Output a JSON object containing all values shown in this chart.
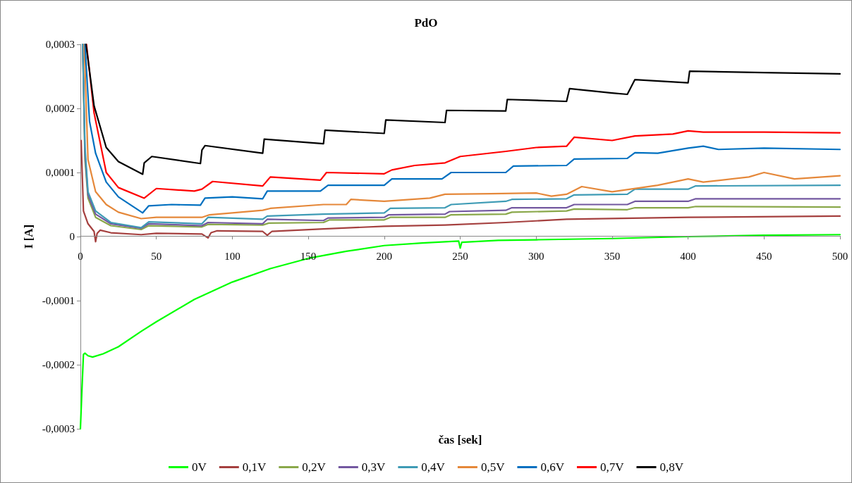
{
  "chart_data": {
    "type": "line",
    "title": "PdO",
    "xlabel": "čas [sek]",
    "ylabel": "I [A]",
    "xlim": [
      0,
      500
    ],
    "xticks": [
      0,
      50,
      100,
      150,
      200,
      250,
      300,
      350,
      400,
      450,
      500
    ],
    "ylim": [
      -0.0003,
      0.0003
    ],
    "yticks": [
      {
        "value": -0.0003,
        "label": "-0,0003"
      },
      {
        "value": -0.0002,
        "label": "-0,0002"
      },
      {
        "value": -0.0001,
        "label": "-0,0001"
      },
      {
        "value": 0,
        "label": "0"
      },
      {
        "value": 0.0001,
        "label": "0,0001"
      },
      {
        "value": 0.0002,
        "label": "0,0002"
      },
      {
        "value": 0.0003,
        "label": "0,0003"
      }
    ],
    "grid": false,
    "legend": "bottom",
    "marker": "none",
    "line_style": "solid",
    "series": [
      {
        "name": "0V",
        "color": "#00ff00",
        "x": [
          0,
          1,
          2,
          3,
          5,
          8,
          15,
          25,
          40,
          50,
          75,
          100,
          125,
          150,
          175,
          200,
          225,
          249,
          250,
          251,
          275,
          300,
          350,
          400,
          450,
          500
        ],
        "values": [
          -0.0003,
          -0.00024,
          -0.000184,
          -0.000182,
          -0.000186,
          -0.000188,
          -0.000183,
          -0.000172,
          -0.000148,
          -0.000133,
          -9.8e-05,
          -7.1e-05,
          -5e-05,
          -3.4e-05,
          -2.3e-05,
          -1.4e-05,
          -1e-05,
          -7e-06,
          -1.8e-05,
          -9e-06,
          -6e-06,
          -5e-06,
          -3e-06,
          0,
          2e-06,
          3e-06
        ]
      },
      {
        "name": "0,1V",
        "color": "#a5403f",
        "x": [
          0.5,
          2,
          5,
          9,
          10,
          11,
          13,
          20,
          40,
          50,
          80,
          84,
          86,
          90,
          120,
          123,
          126,
          160,
          200,
          240,
          280,
          320,
          400,
          500
        ],
        "values": [
          0.00015,
          4e-05,
          2e-05,
          8e-06,
          -8e-06,
          5e-06,
          1e-05,
          6e-06,
          3e-06,
          5e-06,
          4e-06,
          -2e-06,
          6e-06,
          9e-06,
          8e-06,
          2e-06,
          8e-06,
          1.2e-05,
          1.6e-05,
          1.8e-05,
          2.2e-05,
          2.7e-05,
          3e-05,
          3.2e-05
        ]
      },
      {
        "name": "0,2V",
        "color": "#8aa84a",
        "x": [
          1.5,
          3,
          5,
          10,
          20,
          40,
          45,
          80,
          84,
          120,
          124,
          160,
          164,
          200,
          204,
          240,
          244,
          280,
          284,
          320,
          325,
          360,
          365,
          400,
          405,
          500
        ],
        "values": [
          0.0003,
          0.00012,
          6e-05,
          3e-05,
          1.7e-05,
          1.1e-05,
          1.7e-05,
          1.5e-05,
          1.9e-05,
          1.8e-05,
          2.1e-05,
          2.2e-05,
          2.6e-05,
          2.6e-05,
          3e-05,
          3e-05,
          3.4e-05,
          3.5e-05,
          3.8e-05,
          4e-05,
          4.3e-05,
          4.2e-05,
          4.5e-05,
          4.5e-05,
          4.7e-05,
          4.6e-05
        ]
      },
      {
        "name": "0,3V",
        "color": "#7358a0",
        "x": [
          1.5,
          3,
          5,
          10,
          20,
          40,
          45,
          80,
          84,
          120,
          123,
          160,
          163,
          200,
          203,
          240,
          243,
          280,
          284,
          320,
          325,
          360,
          365,
          400,
          405,
          500
        ],
        "values": [
          0.0003,
          0.00013,
          6.5e-05,
          3.5e-05,
          2e-05,
          1.3e-05,
          2e-05,
          1.7e-05,
          2.2e-05,
          2e-05,
          2.7e-05,
          2.5e-05,
          2.9e-05,
          3e-05,
          3.4e-05,
          3.5e-05,
          3.9e-05,
          4.1e-05,
          4.5e-05,
          4.5e-05,
          5e-05,
          5e-05,
          5.5e-05,
          5.5e-05,
          5.9e-05,
          5.9e-05
        ]
      },
      {
        "name": "0,4V",
        "color": "#3e9bb5",
        "x": [
          1.5,
          3,
          5,
          10,
          20,
          40,
          45,
          80,
          84,
          120,
          123,
          160,
          200,
          204,
          240,
          244,
          280,
          284,
          320,
          325,
          360,
          365,
          400,
          405,
          500
        ],
        "values": [
          0.0003,
          0.00014,
          7e-05,
          4e-05,
          2.2e-05,
          1.4e-05,
          2.3e-05,
          2e-05,
          3e-05,
          2.7e-05,
          3.2e-05,
          3.5e-05,
          3.7e-05,
          4.4e-05,
          4.5e-05,
          5e-05,
          5.5e-05,
          5.8e-05,
          5.9e-05,
          6.5e-05,
          6.6e-05,
          7.4e-05,
          7.4e-05,
          7.9e-05,
          8e-05
        ]
      },
      {
        "name": "0,5V",
        "color": "#e5883a",
        "x": [
          2.5,
          5,
          10,
          17,
          25,
          40,
          50,
          80,
          85,
          100,
          120,
          125,
          160,
          175,
          178,
          200,
          230,
          240,
          270,
          300,
          310,
          320,
          330,
          350,
          380,
          400,
          410,
          440,
          450,
          470,
          500
        ],
        "values": [
          0.0003,
          0.00012,
          7e-05,
          5e-05,
          3.8e-05,
          2.8e-05,
          3e-05,
          3e-05,
          3.4e-05,
          3.7e-05,
          4.1e-05,
          4.4e-05,
          5e-05,
          5e-05,
          5.8e-05,
          5.5e-05,
          6e-05,
          6.6e-05,
          6.7e-05,
          6.8e-05,
          6.3e-05,
          6.6e-05,
          7.8e-05,
          7e-05,
          8e-05,
          9e-05,
          8.5e-05,
          9.3e-05,
          0.0001,
          9e-05,
          9.5e-05
        ]
      },
      {
        "name": "0,6V",
        "color": "#0070c0",
        "x": [
          3,
          6,
          10,
          17,
          25,
          41,
          45,
          60,
          79,
          82,
          100,
          120,
          123,
          158,
          163,
          200,
          205,
          238,
          244,
          280,
          285,
          320,
          325,
          360,
          365,
          380,
          400,
          410,
          420,
          450,
          500
        ],
        "values": [
          0.0003,
          0.00018,
          0.00013,
          8.5e-05,
          6.2e-05,
          3.7e-05,
          4.8e-05,
          5e-05,
          4.9e-05,
          6e-05,
          6.2e-05,
          5.9e-05,
          7.1e-05,
          7.1e-05,
          8e-05,
          8e-05,
          9e-05,
          9e-05,
          0.0001,
          0.0001,
          0.00011,
          0.000111,
          0.000121,
          0.000122,
          0.000131,
          0.00013,
          0.000138,
          0.000141,
          0.000136,
          0.000138,
          0.000136
        ]
      },
      {
        "name": "0,7V",
        "color": "#ff0000",
        "x": [
          4,
          9,
          17,
          25,
          42,
          50,
          75,
          80,
          87,
          120,
          125,
          158,
          162,
          200,
          205,
          220,
          240,
          250,
          280,
          300,
          320,
          325,
          350,
          365,
          390,
          400,
          410,
          450,
          500
        ],
        "values": [
          0.0003,
          0.000193,
          0.0001,
          7.65e-05,
          6e-05,
          7.5e-05,
          7.1e-05,
          7.4e-05,
          8.6e-05,
          7.9e-05,
          9.3e-05,
          8.8e-05,
          0.0001,
          9.8e-05,
          0.000104,
          0.000111,
          0.000115,
          0.000125,
          0.000133,
          0.000139,
          0.000141,
          0.000155,
          0.00015,
          0.000157,
          0.00016,
          0.000165,
          0.000163,
          0.000163,
          0.000162
        ]
      },
      {
        "name": "0,8V",
        "color": "#000000",
        "x": [
          3.7,
          9,
          17,
          25,
          41,
          42,
          47,
          79,
          80,
          82,
          120,
          121,
          160,
          161,
          200,
          201,
          240,
          241,
          280,
          281,
          320,
          322,
          350,
          360,
          365,
          400,
          401,
          450,
          500
        ],
        "values": [
          0.0003,
          0.000204,
          0.000139,
          0.000117,
          9.73e-05,
          0.000115,
          0.000125,
          0.000114,
          0.000135,
          0.000142,
          0.00013,
          0.000152,
          0.000145,
          0.000166,
          0.000161,
          0.000182,
          0.000178,
          0.000197,
          0.000196,
          0.000214,
          0.000211,
          0.000231,
          0.000224,
          0.000222,
          0.000245,
          0.00024,
          0.000258,
          0.000256,
          0.000254
        ]
      }
    ]
  }
}
